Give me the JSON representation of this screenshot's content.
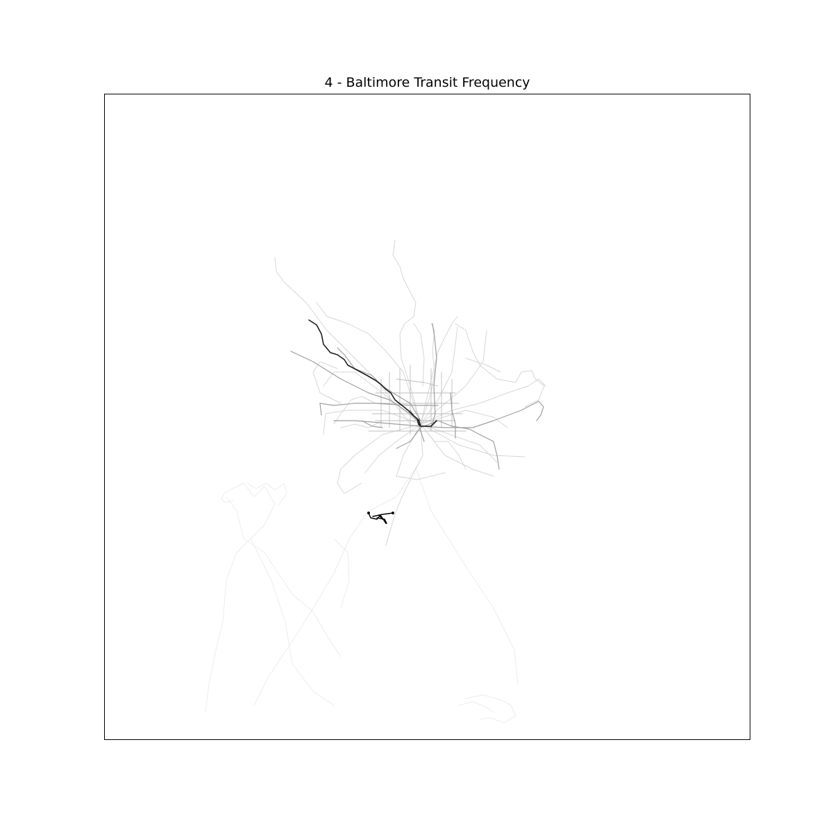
{
  "figure": {
    "title": "4 - Baltimore Transit Frequency"
  },
  "map": {
    "style": "route-frequency line map, darker lines = more frequent service",
    "colors": {
      "background": "#ffffff",
      "frame": "#000000",
      "route_dark": "#111111",
      "route_medium": "#808080",
      "route_light": "#c8c8c8",
      "route_faint": "#e6e6e6"
    }
  }
}
